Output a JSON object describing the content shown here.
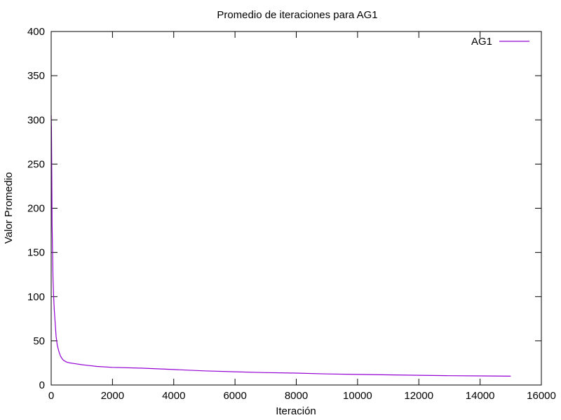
{
  "chart_data": {
    "type": "line",
    "title": "Promedio de iteraciones para AG1",
    "xlabel": "Iteración",
    "ylabel": "Valor Promedio",
    "xlim": [
      0,
      16000
    ],
    "ylim": [
      0,
      400
    ],
    "xticks": [
      0,
      2000,
      4000,
      6000,
      8000,
      10000,
      12000,
      14000,
      16000
    ],
    "yticks": [
      0,
      50,
      100,
      150,
      200,
      250,
      300,
      350,
      400
    ],
    "grid": false,
    "legend_position": "top-right",
    "series": [
      {
        "name": "AG1",
        "color": "#9400d3",
        "x": [
          0,
          10,
          20,
          30,
          45,
          60,
          80,
          100,
          130,
          160,
          200,
          250,
          300,
          350,
          400,
          500,
          600,
          800,
          1000,
          1500,
          2000,
          3000,
          4000,
          5000,
          6000,
          7000,
          8000,
          9000,
          10000,
          11000,
          12000,
          13000,
          14000,
          15000
        ],
        "y": [
          305,
          290,
          230,
          180,
          150,
          120,
          100,
          85,
          70,
          55,
          45,
          38,
          33,
          30,
          28,
          26,
          25,
          24,
          23,
          21,
          20,
          19,
          17.5,
          16,
          15,
          14,
          13.5,
          12.5,
          12,
          11.5,
          11,
          10.5,
          10.3,
          10
        ]
      }
    ]
  }
}
